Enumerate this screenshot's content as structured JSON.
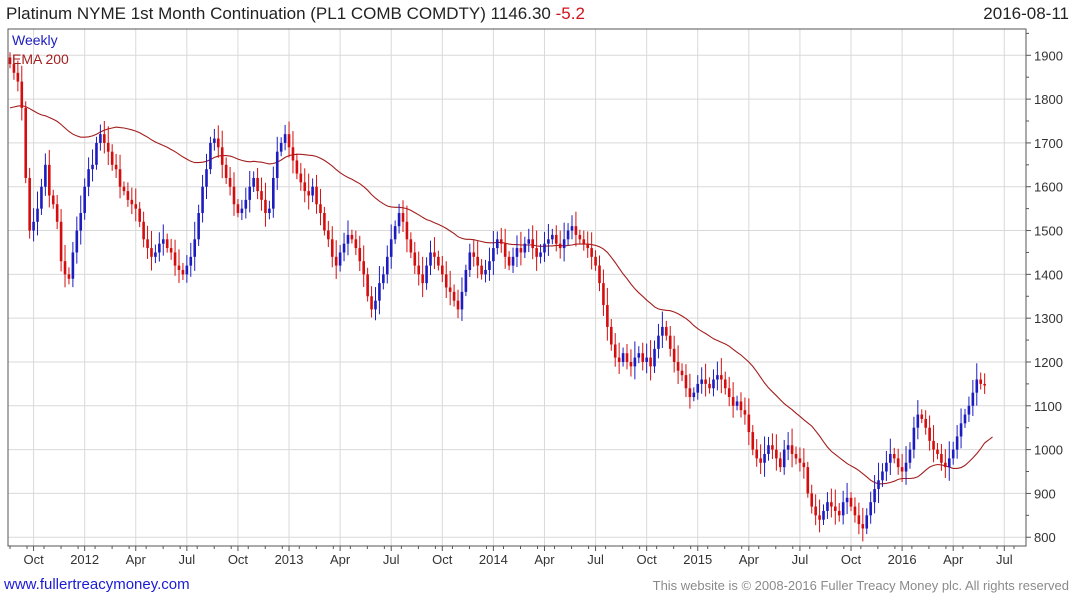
{
  "header": {
    "title": "Platinum NYME 1st Month Continuation (PL1 COMB COMDTY)",
    "last_price": "1146.30",
    "change": "-5.2",
    "date": "2016-08-11"
  },
  "footer": {
    "site": "www.fullertreacymoney.com",
    "copyright": "This website is © 2008-2016 Fuller Treacy Money plc. All rights reserved"
  },
  "colors": {
    "up": "#1c1cc0",
    "down": "#d40e0e",
    "ema": "#a31e1e",
    "grid": "#d9d9d9",
    "frame": "#555555"
  },
  "chart_data": {
    "type": "candlestick",
    "title": "Platinum NYME 1st Month Continuation (PL1 COMB COMDTY)",
    "legend": [
      "Weekly",
      "EMA 200"
    ],
    "legend_position": "top-left",
    "period": "Weekly",
    "y_axis_side": "right",
    "ylim": [
      780,
      1960
    ],
    "y_ticks": [
      800,
      900,
      1000,
      1100,
      1200,
      1300,
      1400,
      1500,
      1600,
      1700,
      1800,
      1900
    ],
    "x_ticks": [
      "Oct",
      "2012",
      "Apr",
      "Jul",
      "Oct",
      "2013",
      "Apr",
      "Jul",
      "Oct",
      "2014",
      "Apr",
      "Jul",
      "Oct",
      "2015",
      "Apr",
      "Jul",
      "Oct",
      "2016",
      "Apr",
      "Jul"
    ],
    "x_tick_week": [
      6,
      19,
      32,
      45,
      58,
      71,
      84,
      97,
      110,
      123,
      136,
      149,
      162,
      175,
      188,
      201,
      214,
      227,
      240,
      253
    ],
    "closes": [
      1880,
      1860,
      1840,
      1780,
      1620,
      1500,
      1520,
      1550,
      1600,
      1650,
      1580,
      1560,
      1520,
      1430,
      1400,
      1390,
      1450,
      1500,
      1540,
      1600,
      1640,
      1650,
      1700,
      1720,
      1700,
      1680,
      1650,
      1640,
      1600,
      1590,
      1570,
      1560,
      1550,
      1520,
      1480,
      1460,
      1440,
      1450,
      1470,
      1480,
      1460,
      1450,
      1420,
      1410,
      1400,
      1420,
      1440,
      1480,
      1540,
      1600,
      1640,
      1700,
      1710,
      1690,
      1650,
      1620,
      1600,
      1560,
      1540,
      1550,
      1570,
      1600,
      1620,
      1590,
      1570,
      1540,
      1550,
      1620,
      1680,
      1700,
      1720,
      1690,
      1660,
      1630,
      1610,
      1590,
      1580,
      1600,
      1560,
      1540,
      1500,
      1480,
      1440,
      1420,
      1450,
      1470,
      1490,
      1480,
      1460,
      1430,
      1400,
      1350,
      1320,
      1340,
      1380,
      1400,
      1440,
      1480,
      1510,
      1540,
      1520,
      1480,
      1450,
      1420,
      1400,
      1380,
      1420,
      1450,
      1440,
      1420,
      1400,
      1370,
      1360,
      1340,
      1320,
      1360,
      1410,
      1450,
      1440,
      1420,
      1400,
      1410,
      1430,
      1460,
      1480,
      1470,
      1440,
      1420,
      1440,
      1460,
      1450,
      1470,
      1480,
      1460,
      1440,
      1450,
      1470,
      1480,
      1490,
      1470,
      1460,
      1480,
      1500,
      1510,
      1490,
      1480,
      1470,
      1460,
      1440,
      1420,
      1380,
      1330,
      1280,
      1240,
      1210,
      1200,
      1220,
      1200,
      1190,
      1210,
      1220,
      1200,
      1210,
      1190,
      1230,
      1260,
      1280,
      1260,
      1230,
      1200,
      1180,
      1170,
      1140,
      1120,
      1130,
      1150,
      1160,
      1150,
      1140,
      1160,
      1170,
      1160,
      1140,
      1120,
      1100,
      1110,
      1090,
      1080,
      1040,
      1000,
      980,
      970,
      990,
      1010,
      1000,
      980,
      960,
      1000,
      1010,
      990,
      980,
      970,
      960,
      900,
      870,
      850,
      840,
      860,
      880,
      870,
      860,
      850,
      880,
      890,
      870,
      850,
      830,
      820,
      850,
      880,
      910,
      930,
      950,
      970,
      990,
      980,
      960,
      950,
      970,
      1000,
      1050,
      1080,
      1070,
      1050,
      1020,
      1000,
      990,
      970,
      960,
      980,
      1000,
      1030,
      1060,
      1080,
      1100,
      1130,
      1160,
      1150,
      1146.3
    ],
    "ema_200": [
      1780,
      1782,
      1784,
      1785,
      1783,
      1778,
      1773,
      1768,
      1764,
      1762,
      1758,
      1754,
      1749,
      1742,
      1734,
      1726,
      1720,
      1716,
      1713,
      1713,
      1714,
      1716,
      1720,
      1725,
      1729,
      1732,
      1734,
      1736,
      1735,
      1734,
      1732,
      1730,
      1727,
      1723,
      1718,
      1713,
      1707,
      1702,
      1698,
      1694,
      1690,
      1685,
      1680,
      1674,
      1668,
      1663,
      1658,
      1655,
      1655,
      1656,
      1658,
      1662,
      1667,
      1670,
      1671,
      1671,
      1670,
      1667,
      1663,
      1660,
      1658,
      1657,
      1658,
      1657,
      1656,
      1654,
      1652,
      1653,
      1656,
      1661,
      1667,
      1671,
      1673,
      1674,
      1674,
      1673,
      1672,
      1671,
      1669,
      1665,
      1660,
      1654,
      1647,
      1639,
      1632,
      1626,
      1621,
      1617,
      1612,
      1607,
      1600,
      1592,
      1582,
      1574,
      1567,
      1561,
      1556,
      1554,
      1553,
      1553,
      1552,
      1550,
      1546,
      1541,
      1536,
      1530,
      1525,
      1522,
      1518,
      1514,
      1510,
      1505,
      1499,
      1493,
      1486,
      1482,
      1480,
      1480,
      1479,
      1477,
      1475,
      1473,
      1472,
      1472,
      1473,
      1473,
      1471,
      1469,
      1468,
      1468,
      1467,
      1467,
      1467,
      1467,
      1465,
      1464,
      1464,
      1465,
      1465,
      1466,
      1466,
      1465,
      1466,
      1467,
      1469,
      1469,
      1469,
      1469,
      1468,
      1466,
      1463,
      1458,
      1450,
      1439,
      1427,
      1414,
      1401,
      1390,
      1378,
      1367,
      1358,
      1350,
      1341,
      1334,
      1326,
      1321,
      1319,
      1318,
      1317,
      1314,
      1310,
      1305,
      1299,
      1292,
      1283,
      1276,
      1270,
      1265,
      1259,
      1253,
      1249,
      1245,
      1241,
      1236,
      1229,
      1222,
      1216,
      1208,
      1200,
      1190,
      1178,
      1165,
      1152,
      1141,
      1132,
      1123,
      1114,
      1105,
      1098,
      1091,
      1083,
      1076,
      1068,
      1061,
      1054,
      1043,
      1031,
      1018,
      1006,
      996,
      989,
      982,
      975,
      968,
      963,
      958,
      952,
      945,
      938,
      930,
      925,
      922,
      922,
      923,
      925,
      928,
      932,
      934,
      934,
      934,
      935,
      938,
      945,
      953,
      960,
      964,
      966,
      965,
      963,
      960,
      957,
      957,
      959,
      964,
      972,
      981,
      991,
      1002,
      1015,
      1022,
      1029
    ]
  }
}
